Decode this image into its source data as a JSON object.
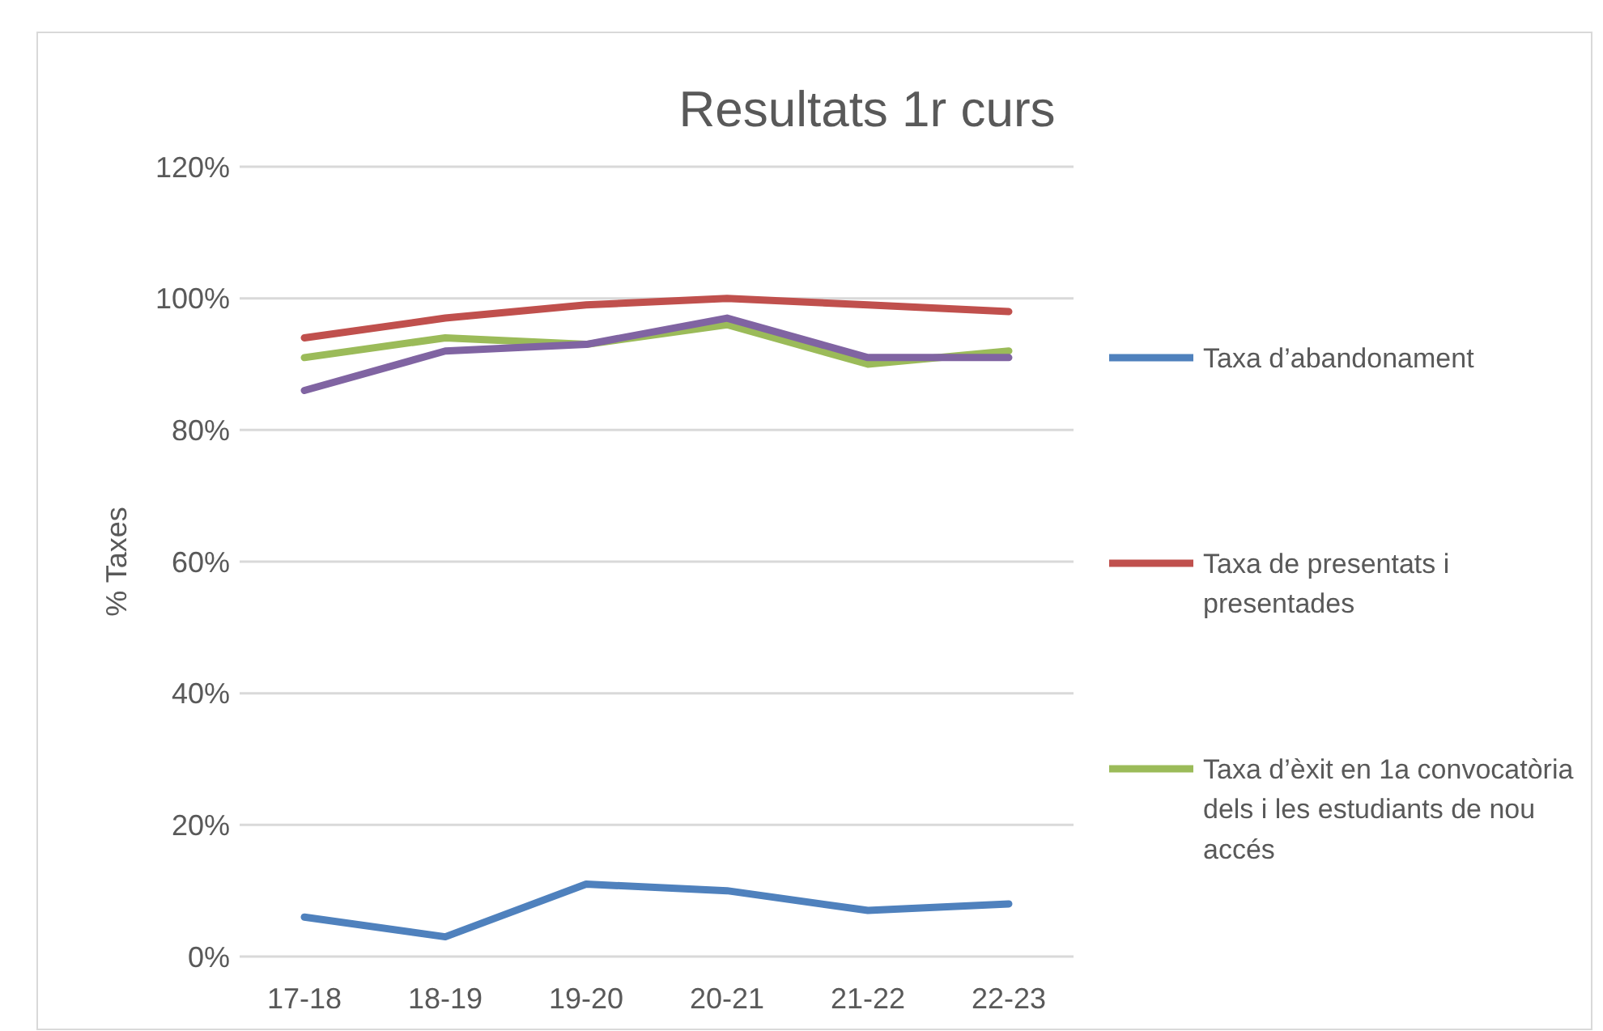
{
  "chart_data": {
    "type": "line",
    "title": "Resultats 1r curs",
    "ylabel": "% Taxes",
    "categories": [
      "17-18",
      "18-19",
      "19-20",
      "20-21",
      "21-22",
      "22-23"
    ],
    "series": [
      {
        "name": "Taxa d’abandonament",
        "color": "#4f81bd",
        "values": [
          6,
          3,
          11,
          10,
          7,
          8
        ]
      },
      {
        "name": "Taxa de presentats i presentades",
        "color": "#c0504d",
        "values": [
          94,
          97,
          99,
          100,
          99,
          98
        ]
      },
      {
        "name": "Taxa d’èxit en 1a convocatòria dels i les estudiants de nou accés",
        "color": "#9bbb59",
        "values": [
          91,
          94,
          93,
          96,
          90,
          92
        ]
      },
      {
        "color": "#8064a2",
        "values": [
          86,
          92,
          93,
          97,
          91,
          91
        ]
      }
    ],
    "ylim": [
      0,
      120
    ],
    "yticks": [
      {
        "value": 0,
        "label": "0%"
      },
      {
        "value": 20,
        "label": "20%"
      },
      {
        "value": 40,
        "label": "40%"
      },
      {
        "value": 60,
        "label": "60%"
      },
      {
        "value": 80,
        "label": "80%"
      },
      {
        "value": 100,
        "label": "100%"
      },
      {
        "value": 120,
        "label": "120%"
      }
    ],
    "grid": "y",
    "legend": "right",
    "marker": "none",
    "line_style": "solid"
  }
}
